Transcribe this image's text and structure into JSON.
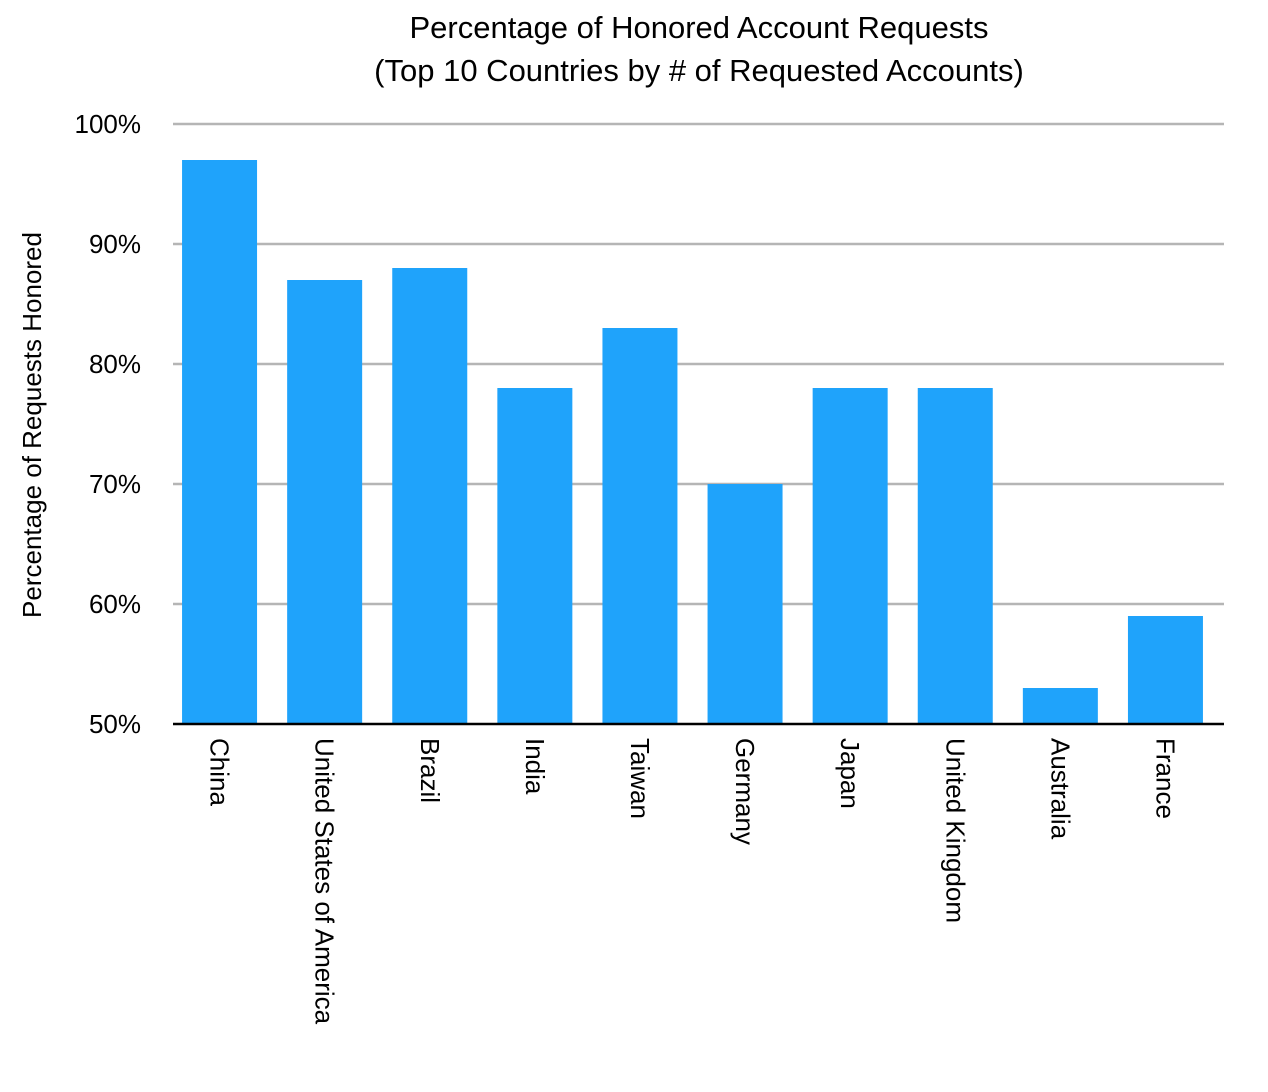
{
  "chart_data": {
    "type": "bar",
    "title": [
      "Percentage of Honored Account Requests",
      "(Top 10 Countries by # of Requested Accounts)"
    ],
    "xlabel": "",
    "ylabel": "Percentage of Requests Honored",
    "ylim": [
      50,
      100
    ],
    "yticks": [
      100,
      90,
      80,
      70,
      60,
      50
    ],
    "ytick_labels": [
      "100%",
      "90%",
      "80%",
      "70%",
      "60%",
      "50%"
    ],
    "categories": [
      "China",
      "United States of America",
      "Brazil",
      "India",
      "Taiwan",
      "Germany",
      "Japan",
      "United Kingdom",
      "Australia",
      "France"
    ],
    "values": [
      97,
      87,
      88,
      78,
      83,
      70,
      78,
      78,
      53,
      59
    ],
    "grid": true,
    "legend": "none",
    "bar_color": "#1fa3fb"
  }
}
